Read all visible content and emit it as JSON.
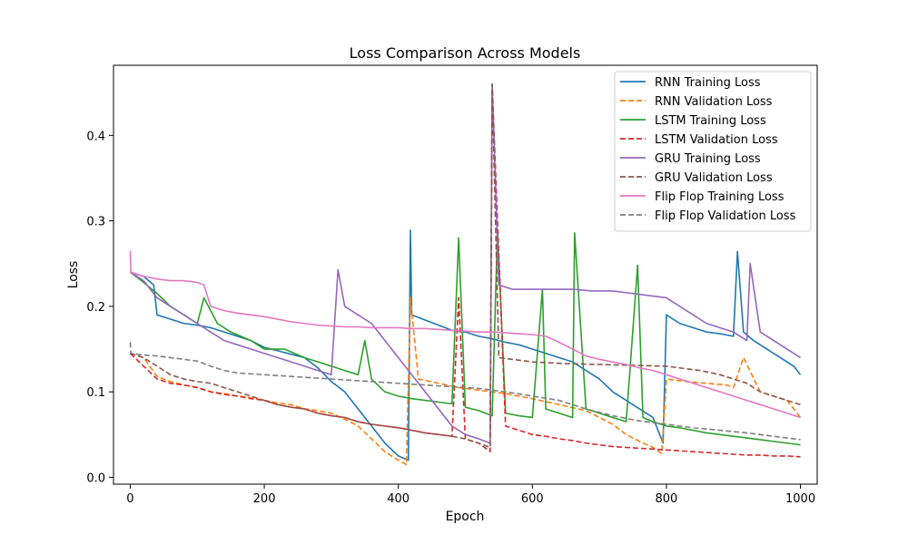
{
  "chart_data": {
    "type": "line",
    "title": "Loss Comparison Across Models",
    "xlabel": "Epoch",
    "ylabel": "Loss",
    "xlim": [
      -25,
      1025
    ],
    "ylim": [
      -0.008,
      0.482
    ],
    "xticks": [
      0,
      200,
      400,
      600,
      800,
      1000
    ],
    "yticks": [
      0.0,
      0.1,
      0.2,
      0.3,
      0.4
    ],
    "ytick_labels": [
      "0.0",
      "0.1",
      "0.2",
      "0.3",
      "0.4"
    ],
    "grid": false,
    "legend_position": "top-right",
    "series": [
      {
        "name": "RNN Training Loss",
        "color": "#1f77b4",
        "dash": "solid",
        "x": [
          0,
          20,
          35,
          40,
          60,
          80,
          100,
          120,
          140,
          160,
          180,
          200,
          220,
          240,
          260,
          280,
          300,
          320,
          340,
          360,
          380,
          400,
          415,
          418,
          420,
          440,
          460,
          480,
          500,
          520,
          540,
          560,
          580,
          600,
          620,
          640,
          660,
          680,
          700,
          720,
          740,
          760,
          780,
          795,
          800,
          820,
          840,
          860,
          880,
          900,
          906,
          915,
          930,
          950,
          970,
          990,
          1000
        ],
        "y": [
          0.24,
          0.235,
          0.225,
          0.19,
          0.185,
          0.18,
          0.178,
          0.175,
          0.17,
          0.165,
          0.16,
          0.152,
          0.148,
          0.144,
          0.14,
          0.128,
          0.112,
          0.1,
          0.08,
          0.06,
          0.04,
          0.025,
          0.02,
          0.289,
          0.19,
          0.184,
          0.178,
          0.172,
          0.17,
          0.165,
          0.162,
          0.158,
          0.155,
          0.15,
          0.145,
          0.14,
          0.135,
          0.125,
          0.115,
          0.1,
          0.09,
          0.08,
          0.07,
          0.04,
          0.19,
          0.18,
          0.175,
          0.17,
          0.168,
          0.165,
          0.264,
          0.17,
          0.16,
          0.15,
          0.14,
          0.13,
          0.12
        ]
      },
      {
        "name": "RNN Validation Loss",
        "color": "#ff7f0e",
        "dash": "dashed",
        "x": [
          0,
          20,
          40,
          60,
          80,
          100,
          120,
          140,
          160,
          180,
          200,
          220,
          240,
          260,
          280,
          300,
          320,
          340,
          360,
          380,
          400,
          412,
          418,
          430,
          460,
          490,
          520,
          560,
          600,
          640,
          680,
          700,
          720,
          740,
          760,
          780,
          793,
          800,
          830,
          860,
          890,
          900,
          915,
          940,
          960,
          980,
          1000
        ],
        "y": [
          0.145,
          0.14,
          0.118,
          0.112,
          0.108,
          0.105,
          0.1,
          0.098,
          0.095,
          0.093,
          0.09,
          0.087,
          0.085,
          0.08,
          0.078,
          0.075,
          0.068,
          0.06,
          0.045,
          0.03,
          0.02,
          0.015,
          0.21,
          0.115,
          0.11,
          0.105,
          0.102,
          0.098,
          0.092,
          0.085,
          0.078,
          0.07,
          0.062,
          0.05,
          0.042,
          0.035,
          0.028,
          0.115,
          0.112,
          0.11,
          0.108,
          0.105,
          0.14,
          0.1,
          0.095,
          0.09,
          0.07
        ]
      },
      {
        "name": "LSTM Training Loss",
        "color": "#2ca02c",
        "dash": "solid",
        "x": [
          0,
          20,
          40,
          60,
          80,
          100,
          110,
          130,
          150,
          180,
          200,
          230,
          260,
          280,
          300,
          320,
          340,
          350,
          360,
          380,
          400,
          420,
          440,
          460,
          480,
          490,
          500,
          520,
          540,
          548,
          560,
          580,
          600,
          615,
          620,
          640,
          660,
          663,
          680,
          700,
          720,
          740,
          757,
          765,
          780,
          800,
          820,
          840,
          860,
          880,
          900,
          920,
          940,
          960,
          980,
          1000
        ],
        "y": [
          0.24,
          0.228,
          0.215,
          0.2,
          0.19,
          0.18,
          0.21,
          0.18,
          0.17,
          0.16,
          0.15,
          0.15,
          0.14,
          0.135,
          0.13,
          0.125,
          0.12,
          0.16,
          0.115,
          0.1,
          0.095,
          0.092,
          0.09,
          0.088,
          0.086,
          0.28,
          0.082,
          0.078,
          0.072,
          0.29,
          0.075,
          0.072,
          0.07,
          0.22,
          0.08,
          0.075,
          0.07,
          0.286,
          0.08,
          0.075,
          0.07,
          0.065,
          0.248,
          0.07,
          0.065,
          0.06,
          0.058,
          0.055,
          0.052,
          0.05,
          0.048,
          0.046,
          0.044,
          0.042,
          0.04,
          0.038
        ]
      },
      {
        "name": "LSTM Validation Loss",
        "color": "#d62728",
        "dash": "dashed",
        "x": [
          0,
          20,
          40,
          60,
          80,
          100,
          120,
          140,
          160,
          180,
          200,
          220,
          240,
          260,
          280,
          300,
          320,
          340,
          360,
          380,
          400,
          420,
          440,
          460,
          480,
          490,
          500,
          520,
          537,
          540,
          560,
          580,
          600,
          620,
          640,
          660,
          680,
          700,
          720,
          740,
          760,
          780,
          800,
          820,
          840,
          860,
          880,
          900,
          920,
          940,
          960,
          980,
          1000
        ],
        "y": [
          0.145,
          0.13,
          0.115,
          0.11,
          0.108,
          0.105,
          0.1,
          0.097,
          0.095,
          0.092,
          0.09,
          0.085,
          0.082,
          0.08,
          0.075,
          0.072,
          0.07,
          0.065,
          0.062,
          0.06,
          0.058,
          0.055,
          0.052,
          0.05,
          0.048,
          0.21,
          0.045,
          0.04,
          0.03,
          0.46,
          0.06,
          0.055,
          0.05,
          0.048,
          0.045,
          0.043,
          0.04,
          0.038,
          0.036,
          0.035,
          0.034,
          0.033,
          0.032,
          0.031,
          0.03,
          0.029,
          0.028,
          0.027,
          0.026,
          0.026,
          0.025,
          0.025,
          0.024
        ]
      },
      {
        "name": "GRU Training Loss",
        "color": "#9467bd",
        "dash": "solid",
        "x": [
          0,
          20,
          40,
          60,
          80,
          100,
          120,
          140,
          160,
          180,
          200,
          220,
          240,
          260,
          280,
          300,
          310,
          320,
          340,
          360,
          380,
          400,
          420,
          440,
          460,
          480,
          500,
          520,
          537,
          540,
          550,
          570,
          600,
          630,
          660,
          690,
          720,
          750,
          780,
          800,
          820,
          840,
          860,
          880,
          900,
          920,
          925,
          940,
          960,
          980,
          1000
        ],
        "y": [
          0.24,
          0.23,
          0.21,
          0.2,
          0.19,
          0.18,
          0.17,
          0.16,
          0.155,
          0.15,
          0.145,
          0.14,
          0.135,
          0.13,
          0.125,
          0.12,
          0.243,
          0.2,
          0.19,
          0.18,
          0.16,
          0.14,
          0.12,
          0.1,
          0.08,
          0.06,
          0.05,
          0.045,
          0.04,
          0.46,
          0.225,
          0.22,
          0.22,
          0.22,
          0.22,
          0.218,
          0.218,
          0.215,
          0.212,
          0.21,
          0.2,
          0.19,
          0.18,
          0.175,
          0.17,
          0.16,
          0.25,
          0.17,
          0.16,
          0.15,
          0.14
        ]
      },
      {
        "name": "GRU Validation Loss",
        "color": "#8c564b",
        "dash": "dashed",
        "x": [
          0,
          20,
          40,
          60,
          80,
          100,
          120,
          140,
          160,
          180,
          200,
          220,
          240,
          260,
          280,
          300,
          320,
          340,
          360,
          380,
          400,
          420,
          440,
          460,
          480,
          500,
          520,
          537,
          540,
          550,
          600,
          650,
          700,
          750,
          800,
          850,
          880,
          900,
          920,
          940,
          960,
          980,
          1000
        ],
        "y": [
          0.145,
          0.14,
          0.13,
          0.12,
          0.115,
          0.112,
          0.11,
          0.105,
          0.1,
          0.095,
          0.09,
          0.085,
          0.082,
          0.08,
          0.075,
          0.072,
          0.07,
          0.065,
          0.062,
          0.06,
          0.058,
          0.055,
          0.052,
          0.05,
          0.048,
          0.045,
          0.04,
          0.035,
          0.46,
          0.14,
          0.135,
          0.133,
          0.132,
          0.131,
          0.13,
          0.125,
          0.12,
          0.115,
          0.11,
          0.1,
          0.095,
          0.09,
          0.085
        ]
      },
      {
        "name": "Flip Flop Training Loss",
        "color": "#e377c2",
        "dash": "solid",
        "x": [
          0,
          1,
          20,
          40,
          60,
          80,
          100,
          110,
          120,
          140,
          160,
          180,
          200,
          220,
          240,
          260,
          280,
          300,
          320,
          340,
          360,
          380,
          400,
          420,
          440,
          460,
          480,
          500,
          520,
          540,
          560,
          580,
          600,
          620,
          640,
          660,
          680,
          700,
          720,
          740,
          760,
          780,
          800,
          820,
          840,
          860,
          880,
          900,
          920,
          940,
          960,
          980,
          1000
        ],
        "y": [
          0.265,
          0.24,
          0.235,
          0.232,
          0.23,
          0.23,
          0.228,
          0.225,
          0.2,
          0.195,
          0.192,
          0.19,
          0.188,
          0.185,
          0.182,
          0.18,
          0.178,
          0.177,
          0.176,
          0.176,
          0.175,
          0.175,
          0.175,
          0.174,
          0.174,
          0.173,
          0.172,
          0.171,
          0.17,
          0.17,
          0.169,
          0.168,
          0.167,
          0.165,
          0.158,
          0.15,
          0.142,
          0.138,
          0.135,
          0.132,
          0.128,
          0.125,
          0.12,
          0.115,
          0.11,
          0.105,
          0.1,
          0.095,
          0.09,
          0.085,
          0.08,
          0.075,
          0.07
        ]
      },
      {
        "name": "Flip Flop Validation Loss",
        "color": "#7f7f7f",
        "dash": "dashed",
        "x": [
          0,
          1,
          20,
          40,
          60,
          80,
          100,
          120,
          140,
          160,
          200,
          240,
          280,
          320,
          360,
          400,
          440,
          480,
          520,
          560,
          600,
          640,
          680,
          720,
          760,
          800,
          840,
          880,
          920,
          960,
          1000
        ],
        "y": [
          0.158,
          0.145,
          0.143,
          0.142,
          0.14,
          0.138,
          0.136,
          0.13,
          0.125,
          0.122,
          0.12,
          0.118,
          0.116,
          0.114,
          0.112,
          0.11,
          0.108,
          0.106,
          0.104,
          0.1,
          0.095,
          0.09,
          0.08,
          0.072,
          0.066,
          0.062,
          0.058,
          0.055,
          0.052,
          0.048,
          0.044
        ]
      }
    ]
  }
}
